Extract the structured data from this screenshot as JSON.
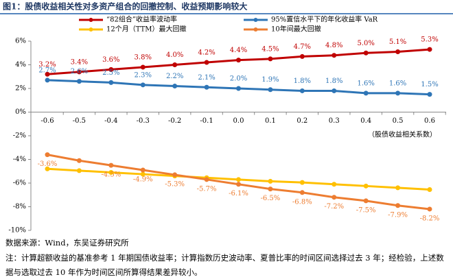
{
  "chart_data": {
    "type": "line",
    "title": "图1：股债收益相关性对多资产组合的回撤控制、收益预期影响较大",
    "x_label": "（股债收益相关系数）",
    "categories": [
      "-0.6",
      "-0.5",
      "-0.4",
      "-0.3",
      "-0.2",
      "-0.1",
      "0.0",
      "0.1",
      "0.2",
      "0.3",
      "0.4",
      "0.5",
      "0.6"
    ],
    "series": [
      {
        "name": "“82组合”收益率波动率",
        "color": "#c00000",
        "values": [
          3.2,
          3.4,
          3.6,
          3.8,
          4.0,
          4.2,
          4.4,
          4.5,
          4.7,
          4.8,
          5.0,
          5.1,
          5.3
        ],
        "value_labels": [
          "3.2%",
          "3.4%",
          "3.6%",
          "3.8%",
          "4.0%",
          "4.2%",
          "4.4%",
          "4.5%",
          "4.7%",
          "4.8%",
          "5.0%",
          "5.1%",
          "5.3%"
        ]
      },
      {
        "name": "95%置信水平下的年化收益率 VaR",
        "color": "#2e75b6",
        "values": [
          2.7,
          2.6,
          2.5,
          2.3,
          2.2,
          2.1,
          2.0,
          1.9,
          1.8,
          1.8,
          1.6,
          1.6,
          1.5
        ],
        "value_labels": [
          "2.7%",
          "2.6%",
          "2.5%",
          "2.3%",
          "2.2%",
          "2.1%",
          "2.0%",
          "1.9%",
          "1.8%",
          "1.8%",
          "1.6%",
          "1.6%",
          "1.5%"
        ]
      },
      {
        "name": "12个月（TTM）最大回撤",
        "color": "#ffc000",
        "values": [
          -4.8,
          -4.95,
          -5.1,
          -5.25,
          -5.4,
          -5.55,
          -5.7,
          -5.85,
          -5.95,
          -6.1,
          -6.25,
          -6.4,
          -6.55
        ]
      },
      {
        "name": "10年间最大回撤",
        "color": "#ed7d31",
        "values": [
          -3.6,
          -4.1,
          -4.5,
          -4.9,
          -5.3,
          -5.7,
          -6.1,
          -6.5,
          -6.8,
          -7.2,
          -7.5,
          -7.9,
          -8.2
        ],
        "value_labels": [
          "-3.6%",
          null,
          "-4.5%",
          "-4.9%",
          "-5.3%",
          "-5.7%",
          "-6.1%",
          "-6.5%",
          "-6.8%",
          "-7.2%",
          "-7.5%",
          "-7.9%",
          "-8.2%"
        ]
      }
    ],
    "ylim": [
      -10,
      6
    ],
    "yticks": [
      {
        "value": -10,
        "label": "-10%"
      },
      {
        "value": -8,
        "label": "-8%"
      },
      {
        "value": -6,
        "label": "-6%"
      },
      {
        "value": -4,
        "label": "-4%"
      },
      {
        "value": -2,
        "label": "-2%"
      },
      {
        "value": 0,
        "label": "0%"
      },
      {
        "value": 2,
        "label": "2%"
      },
      {
        "value": 4,
        "label": "4%"
      },
      {
        "value": 6,
        "label": "6%"
      }
    ]
  },
  "source": "数据来源：Wind，东吴证券研究所",
  "note": "注：计算超额收益的基准参考 1 年期国债收益率；计算指数历史波动率、夏普比率的时间区间选择过去 3 年；经检验，上述数据与选取过去 10 年作为时间区间所算得结果差异较小。"
}
